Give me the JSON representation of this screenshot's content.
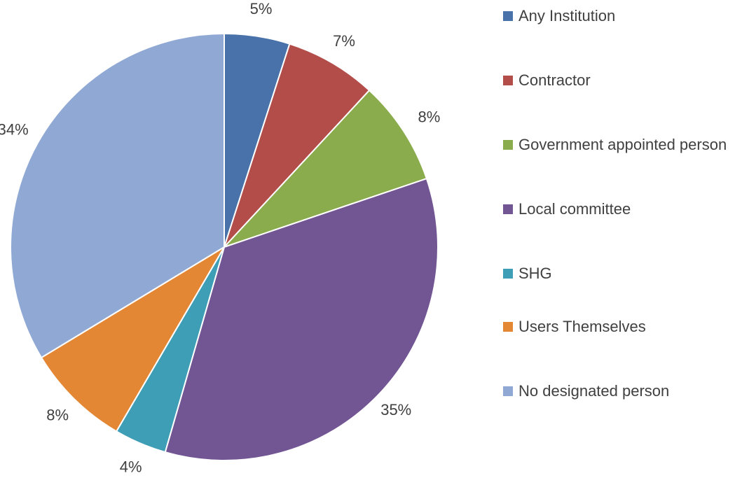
{
  "chart_data": {
    "type": "pie",
    "start_angle": "12 o'clock",
    "direction": "clockwise",
    "legend": "right",
    "slices": [
      {
        "label": "Any Institution",
        "value": 5,
        "display": "5%",
        "color": "#4a72aa"
      },
      {
        "label": "Contractor",
        "value": 7,
        "display": "7%",
        "color": "#b34d49"
      },
      {
        "label": "Government appointed person",
        "value": 8,
        "display": "8%",
        "color": "#8aac4c"
      },
      {
        "label": "Local committee",
        "value": 35,
        "display": "35%",
        "color": "#725593"
      },
      {
        "label": "SHG",
        "value": 4,
        "display": "4%",
        "color": "#3e9eb5"
      },
      {
        "label": "Users Themselves",
        "value": 8,
        "display": "8%",
        "color": "#e48734"
      },
      {
        "label": "No designated person",
        "value": 34,
        "display": "34%",
        "color": "#90a9d4"
      }
    ]
  }
}
